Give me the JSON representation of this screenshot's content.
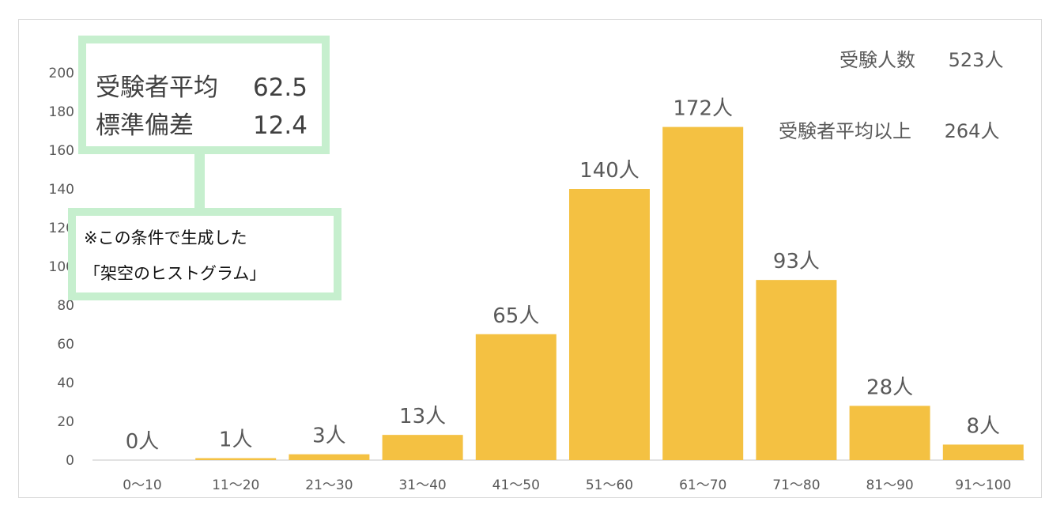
{
  "chart_data": {
    "type": "bar",
    "categories": [
      "0〜10",
      "11〜20",
      "21〜30",
      "31〜40",
      "41〜50",
      "51〜60",
      "61〜70",
      "71〜80",
      "81〜90",
      "91〜100"
    ],
    "values": [
      0,
      1,
      3,
      13,
      65,
      140,
      172,
      93,
      28,
      8
    ],
    "data_labels": [
      "0人",
      "1人",
      "3人",
      "13人",
      "65人",
      "140人",
      "172人",
      "93人",
      "28人",
      "8人"
    ],
    "y_ticks": [
      0,
      20,
      40,
      60,
      80,
      100,
      120,
      140,
      160,
      180,
      200
    ],
    "ylim": [
      0,
      200
    ],
    "title": "",
    "xlabel": "",
    "ylabel": "",
    "grid": false,
    "bar_color": "#f4c142"
  },
  "summary_box": {
    "mean_label": "受験者平均",
    "mean_value": "62.5",
    "sd_label": "標準偏差",
    "sd_value": "12.4"
  },
  "note_box": {
    "line1": "※この条件で生成した",
    "line2": "「架空のヒストグラム」"
  },
  "stats": {
    "examinees_label": "受験人数",
    "examinees_value": "523人",
    "above_mean_label": "受験者平均以上",
    "above_mean_value": "264人"
  },
  "colors": {
    "box_border": "#c6efce",
    "axis": "#d9d9d9",
    "text": "#595959"
  }
}
